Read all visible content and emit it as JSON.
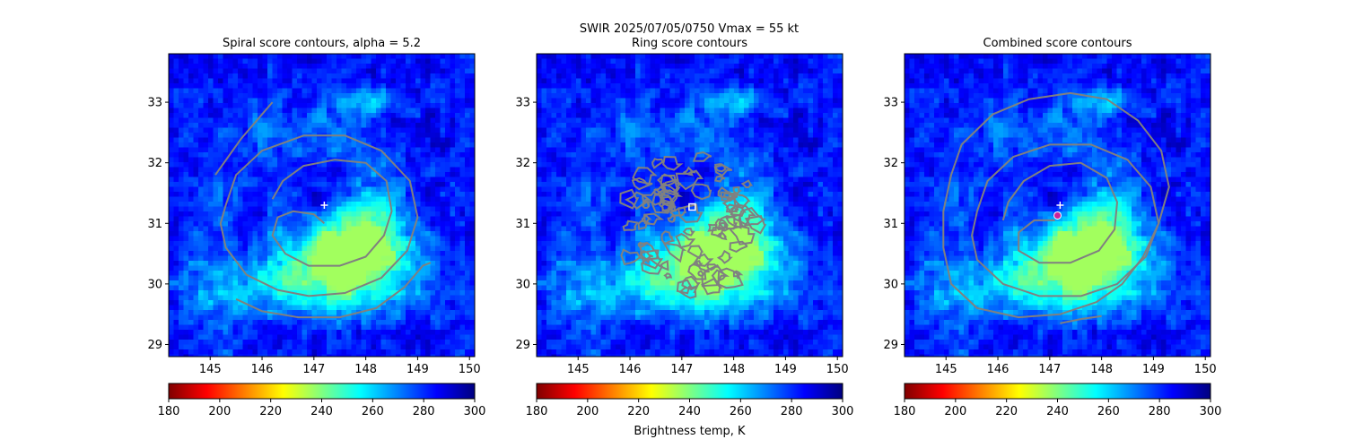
{
  "figure": {
    "suptitle_line1": "SWIR  2025/07/05/0750    Vmax = 55 kt",
    "colorbar_label": "Brightness temp, K"
  },
  "colormap": {
    "stops": [
      "#800000",
      "#ff0000",
      "#ff8000",
      "#ffff00",
      "#80ff80",
      "#00ffff",
      "#0080ff",
      "#0000ff",
      "#000080"
    ],
    "contour_color": "#808080",
    "marker_color": "#ffffff",
    "combined_marker_color": "#cc2299"
  },
  "chart_data": [
    {
      "type": "heatmap",
      "title": "Spiral score contours, alpha =  5.2",
      "xlim": [
        144.2,
        150.1
      ],
      "ylim": [
        28.8,
        33.8
      ],
      "xticks": [
        145,
        146,
        147,
        148,
        149,
        150
      ],
      "yticks": [
        29,
        30,
        31,
        32,
        33
      ],
      "center_marker": {
        "lon": 147.2,
        "lat": 31.3,
        "symbol": "plus"
      },
      "contours": [
        [
          [
            145.1,
            31.8
          ],
          [
            145.6,
            32.4
          ],
          [
            146.0,
            32.8
          ],
          [
            146.2,
            33.0
          ]
        ],
        [
          [
            147.2,
            31.0
          ],
          [
            147.0,
            31.15
          ],
          [
            146.6,
            31.2
          ],
          [
            146.3,
            31.1
          ],
          [
            146.2,
            30.8
          ],
          [
            146.45,
            30.5
          ],
          [
            146.9,
            30.3
          ],
          [
            147.5,
            30.3
          ],
          [
            148.0,
            30.45
          ],
          [
            148.35,
            30.8
          ],
          [
            148.5,
            31.2
          ],
          [
            148.4,
            31.7
          ],
          [
            148.0,
            32.0
          ],
          [
            147.4,
            32.05
          ],
          [
            146.8,
            31.95
          ],
          [
            146.4,
            31.7
          ],
          [
            146.2,
            31.4
          ]
        ],
        [
          [
            145.3,
            31.3
          ],
          [
            145.5,
            31.8
          ],
          [
            146.0,
            32.2
          ],
          [
            146.8,
            32.45
          ],
          [
            147.6,
            32.45
          ],
          [
            148.3,
            32.2
          ],
          [
            148.85,
            31.7
          ],
          [
            149.0,
            31.1
          ],
          [
            148.8,
            30.55
          ],
          [
            148.3,
            30.1
          ],
          [
            147.6,
            29.85
          ],
          [
            146.9,
            29.8
          ],
          [
            146.3,
            29.9
          ],
          [
            145.7,
            30.15
          ],
          [
            145.3,
            30.6
          ],
          [
            145.2,
            31.0
          ],
          [
            145.3,
            31.3
          ]
        ],
        [
          [
            145.5,
            29.75
          ],
          [
            146.0,
            29.55
          ],
          [
            146.7,
            29.45
          ],
          [
            147.5,
            29.45
          ],
          [
            148.2,
            29.6
          ],
          [
            148.75,
            29.95
          ],
          [
            149.1,
            30.3
          ],
          [
            149.25,
            30.35
          ]
        ]
      ]
    },
    {
      "type": "heatmap",
      "title": "Ring score contours",
      "xlim": [
        144.2,
        150.1
      ],
      "ylim": [
        28.8,
        33.8
      ],
      "xticks": [
        145,
        146,
        147,
        148,
        149,
        150
      ],
      "yticks": [
        29,
        30,
        31,
        32,
        33
      ],
      "center_marker": {
        "lon": 147.2,
        "lat": 31.27,
        "symbol": "square"
      },
      "ring_noise_region": {
        "center_lon": 147.15,
        "center_lat": 31.0,
        "radius_deg": 1.35
      },
      "contours": []
    },
    {
      "type": "heatmap",
      "title": "Combined score contours",
      "xlim": [
        144.2,
        150.1
      ],
      "ylim": [
        28.8,
        33.8
      ],
      "xticks": [
        145,
        146,
        147,
        148,
        149,
        150
      ],
      "yticks": [
        29,
        30,
        31,
        32,
        33
      ],
      "center_marker": {
        "lon": 147.2,
        "lat": 31.3,
        "symbol": "plus"
      },
      "combined_marker": {
        "lon": 147.15,
        "lat": 31.13
      },
      "contours": [
        [
          [
            147.1,
            31.05
          ],
          [
            146.7,
            31.05
          ],
          [
            146.4,
            30.85
          ],
          [
            146.4,
            30.55
          ],
          [
            146.8,
            30.35
          ],
          [
            147.4,
            30.35
          ],
          [
            147.95,
            30.55
          ],
          [
            148.25,
            30.9
          ],
          [
            148.3,
            31.35
          ],
          [
            148.1,
            31.75
          ],
          [
            147.6,
            32.0
          ],
          [
            147.0,
            31.95
          ],
          [
            146.5,
            31.7
          ],
          [
            146.2,
            31.35
          ],
          [
            146.1,
            31.05
          ]
        ],
        [
          [
            145.6,
            31.2
          ],
          [
            145.8,
            31.7
          ],
          [
            146.3,
            32.1
          ],
          [
            147.0,
            32.3
          ],
          [
            147.8,
            32.3
          ],
          [
            148.5,
            32.05
          ],
          [
            148.95,
            31.6
          ],
          [
            149.1,
            31.0
          ],
          [
            148.85,
            30.45
          ],
          [
            148.3,
            30.0
          ],
          [
            147.6,
            29.8
          ],
          [
            146.8,
            29.8
          ],
          [
            146.1,
            30.0
          ],
          [
            145.6,
            30.4
          ],
          [
            145.5,
            30.8
          ],
          [
            145.6,
            31.2
          ]
        ],
        [
          [
            145.3,
            32.3
          ],
          [
            145.9,
            32.8
          ],
          [
            146.6,
            33.05
          ],
          [
            147.4,
            33.15
          ],
          [
            148.1,
            33.05
          ],
          [
            148.7,
            32.7
          ],
          [
            149.15,
            32.2
          ],
          [
            149.3,
            31.6
          ],
          [
            149.1,
            31.0
          ],
          [
            148.8,
            30.45
          ],
          [
            148.4,
            30.0
          ],
          [
            147.9,
            29.7
          ],
          [
            147.2,
            29.5
          ],
          [
            146.4,
            29.45
          ],
          [
            145.6,
            29.6
          ],
          [
            145.1,
            30.0
          ],
          [
            144.95,
            30.6
          ],
          [
            144.95,
            31.2
          ],
          [
            145.1,
            31.8
          ],
          [
            145.3,
            32.3
          ]
        ],
        [
          [
            147.2,
            29.35
          ],
          [
            147.6,
            29.42
          ],
          [
            148.0,
            29.47
          ]
        ]
      ]
    }
  ],
  "colorbar": {
    "vmin": 180,
    "vmax": 300,
    "ticks": [
      180,
      200,
      220,
      240,
      260,
      280,
      300
    ]
  }
}
